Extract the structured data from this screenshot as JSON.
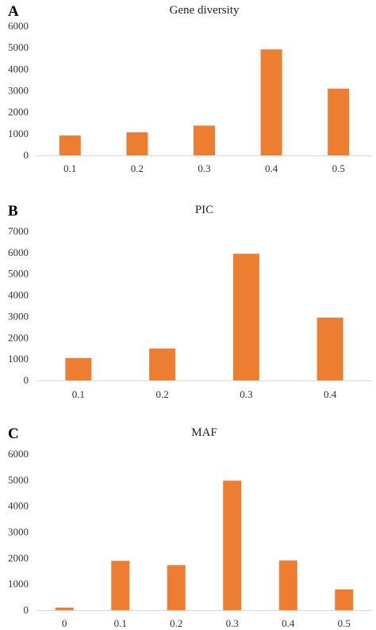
{
  "chart_data": [
    {
      "type": "bar",
      "panel": "A",
      "title": "Gene diversity",
      "categories": [
        "0.1",
        "0.2",
        "0.3",
        "0.4",
        "0.5"
      ],
      "values": [
        920,
        1070,
        1380,
        4920,
        3100
      ],
      "ylim": [
        0,
        6000
      ],
      "yticks": [
        "0",
        "1000",
        "2000",
        "3000",
        "4000",
        "5000",
        "6000"
      ],
      "grid": false,
      "bar_color": "#ED7D31"
    },
    {
      "type": "bar",
      "panel": "B",
      "title": "PIC",
      "categories": [
        "0.1",
        "0.2",
        "0.3",
        "0.4"
      ],
      "values": [
        1050,
        1500,
        5950,
        2950
      ],
      "ylim": [
        0,
        7000
      ],
      "yticks": [
        "0",
        "1000",
        "2000",
        "3000",
        "4000",
        "5000",
        "6000",
        "7000"
      ],
      "grid": false,
      "bar_color": "#ED7D31"
    },
    {
      "type": "bar",
      "panel": "C",
      "title": "MAF",
      "categories": [
        "0",
        "0.1",
        "0.2",
        "0.3",
        "0.4",
        "0.5"
      ],
      "values": [
        100,
        1900,
        1730,
        4980,
        1910,
        800
      ],
      "ylim": [
        0,
        6000
      ],
      "yticks": [
        "0",
        "1000",
        "2000",
        "3000",
        "4000",
        "5000",
        "6000"
      ],
      "grid": false,
      "bar_color": "#ED7D31"
    }
  ]
}
